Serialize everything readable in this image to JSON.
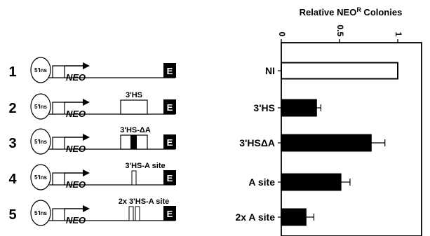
{
  "constructs": [
    {
      "number": "1",
      "promoter": "5'Ins",
      "gene": "NEO",
      "element": "E",
      "insert_label": "",
      "insert": "none"
    },
    {
      "number": "2",
      "promoter": "5'Ins",
      "gene": "NEO",
      "element": "E",
      "insert_label": "3'HS",
      "insert": "full"
    },
    {
      "number": "3",
      "promoter": "5'Ins",
      "gene": "NEO",
      "element": "E",
      "insert_label": "3'HS-ΔA",
      "insert": "deltaA"
    },
    {
      "number": "4",
      "promoter": "5'Ins",
      "gene": "NEO",
      "element": "E",
      "insert_label": "3'HS-A site",
      "insert": "asite"
    },
    {
      "number": "5",
      "promoter": "5'Ins",
      "gene": "NEO",
      "element": "E",
      "insert_label": "2x 3'HS-A site",
      "insert": "asite2x"
    }
  ],
  "chart_data": {
    "type": "bar",
    "orientation": "horizontal",
    "title": "Relative NEO",
    "title_superscript": "R",
    "title_suffix": " Colonies",
    "categories": [
      "NI",
      "3'HS",
      "3'HSΔA",
      "A site",
      "2x A site"
    ],
    "values": [
      1.0,
      0.3,
      0.77,
      0.51,
      0.21
    ],
    "errors": [
      0,
      0.04,
      0.12,
      0.08,
      0.07
    ],
    "fill": [
      "#ffffff",
      "#000000",
      "#000000",
      "#000000",
      "#000000"
    ],
    "xlim": [
      0,
      1.2
    ],
    "xticks": [
      0,
      0.5,
      1
    ],
    "xtick_labels": [
      "0",
      "0.5",
      "1"
    ]
  }
}
